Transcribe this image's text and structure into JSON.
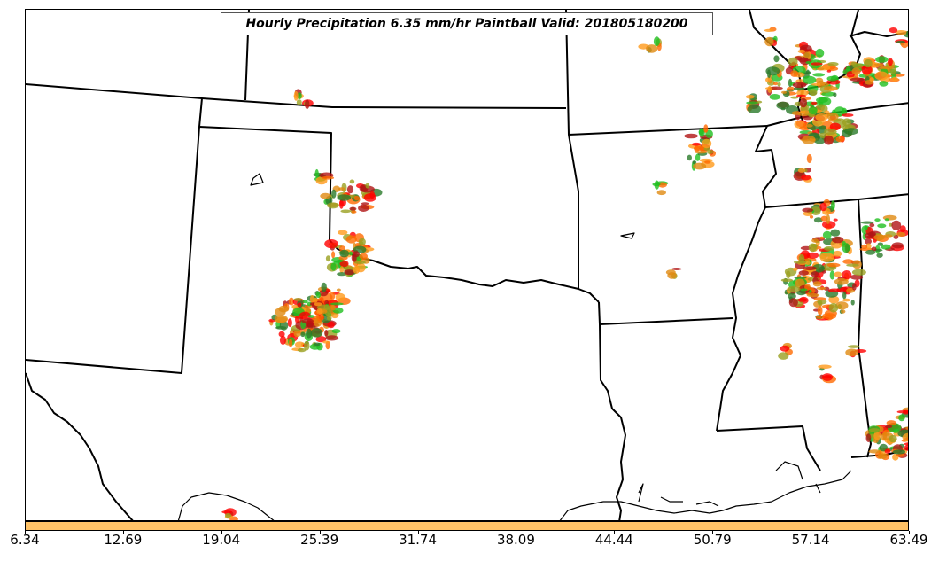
{
  "title": "Hourly Precipitation 6.35 mm/hr Paintball Valid: 201805180200",
  "colorbar": {
    "color": "#ffc266",
    "ticks": [
      "6.34",
      "12.69",
      "19.04",
      "25.39",
      "31.74",
      "38.09",
      "44.44",
      "50.79",
      "57.14",
      "63.49"
    ]
  },
  "palette": [
    "#ff6a00",
    "#ff0000",
    "#ff9a1a",
    "#9aa020",
    "#1fbf1f",
    "#2a7a2a",
    "#b01414",
    "#e08a10"
  ],
  "icons": {
    "map": "state-boundary-map"
  }
}
